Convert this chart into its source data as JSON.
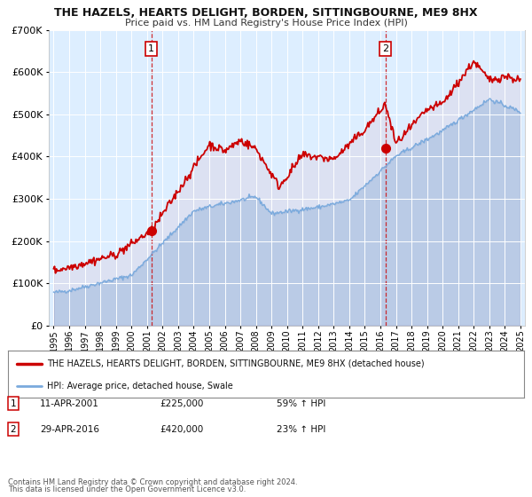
{
  "title": "THE HAZELS, HEARTS DELIGHT, BORDEN, SITTINGBOURNE, ME9 8HX",
  "subtitle": "Price paid vs. HM Land Registry's House Price Index (HPI)",
  "legend_line1": "THE HAZELS, HEARTS DELIGHT, BORDEN, SITTINGBOURNE, ME9 8HX (detached house)",
  "legend_line2": "HPI: Average price, detached house, Swale",
  "sale1_date": "11-APR-2001",
  "sale1_price": "£225,000",
  "sale1_hpi": "59% ↑ HPI",
  "sale2_date": "29-APR-2016",
  "sale2_price": "£420,000",
  "sale2_hpi": "23% ↑ HPI",
  "footnote1": "Contains HM Land Registry data © Crown copyright and database right 2024.",
  "footnote2": "This data is licensed under the Open Government Licence v3.0.",
  "price_color": "#cc0000",
  "hpi_color": "#7aaadd",
  "bg_color": "#ddeeff",
  "fig_bg": "#ffffff",
  "sale1_x": 2001.28,
  "sale1_y": 225000,
  "sale2_x": 2016.33,
  "sale2_y": 420000,
  "ylim": [
    0,
    700000
  ],
  "xlim": [
    1994.7,
    2025.3
  ],
  "yticks": [
    0,
    100000,
    200000,
    300000,
    400000,
    500000,
    600000,
    700000
  ],
  "xticks": [
    1995,
    1996,
    1997,
    1998,
    1999,
    2000,
    2001,
    2002,
    2003,
    2004,
    2005,
    2006,
    2007,
    2008,
    2009,
    2010,
    2011,
    2012,
    2013,
    2014,
    2015,
    2016,
    2017,
    2018,
    2019,
    2020,
    2021,
    2022,
    2023,
    2024,
    2025
  ]
}
